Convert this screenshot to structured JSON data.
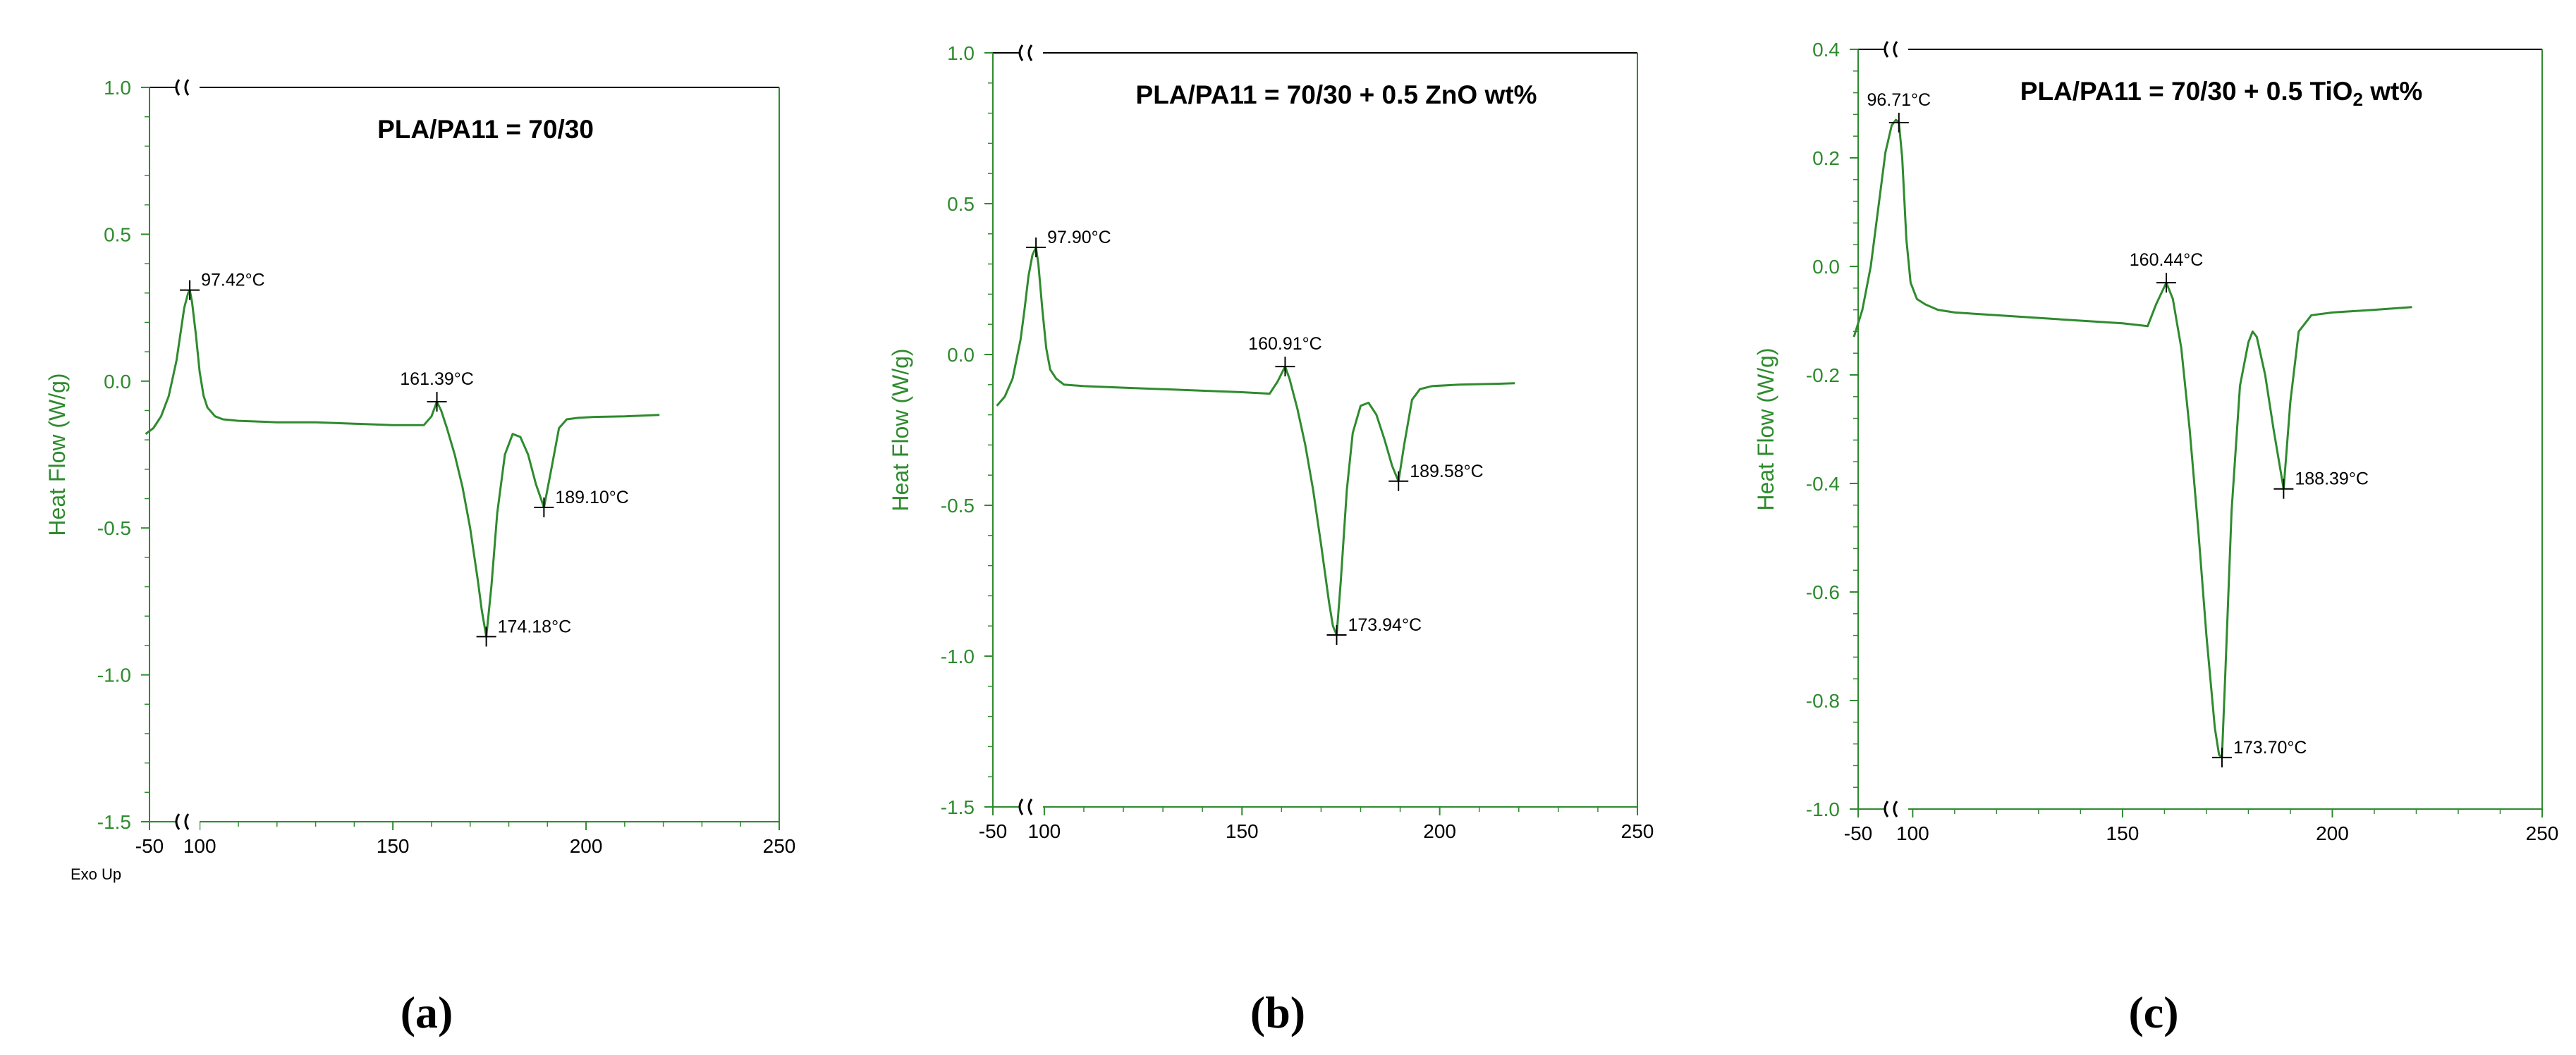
{
  "chart_data": [
    {
      "type": "line",
      "panel_label": "(a)",
      "title": "PLA/PA11 = 70/30",
      "xlabel": "",
      "ylabel": "Heat Flow (W/g)",
      "footnote": "Exo Up",
      "xlim": [
        -50,
        250
      ],
      "ylim": [
        -1.5,
        1.0
      ],
      "x_break": true,
      "x_ticks": [
        "-50",
        "100",
        "150",
        "200",
        "250"
      ],
      "y_ticks": [
        "1.0",
        "0.5",
        "0.0",
        "-0.5",
        "-1.0",
        "-1.5"
      ],
      "grid": false,
      "series": [
        {
          "color": "#2e8b2e",
          "x": [
            86,
            88,
            90,
            92,
            94,
            95,
            96,
            97,
            97.42,
            98,
            99,
            100,
            101,
            102,
            104,
            106,
            110,
            120,
            130,
            140,
            150,
            158,
            160,
            161.39,
            162.5,
            164,
            166,
            168,
            170,
            172,
            173,
            174.18,
            175.5,
            177,
            179,
            181,
            183,
            185,
            187,
            189.1,
            191,
            193,
            195,
            198,
            202,
            210,
            219
          ],
          "values": [
            -0.18,
            -0.16,
            -0.12,
            -0.05,
            0.07,
            0.16,
            0.25,
            0.3,
            0.31,
            0.27,
            0.16,
            0.03,
            -0.05,
            -0.09,
            -0.12,
            -0.13,
            -0.135,
            -0.14,
            -0.14,
            -0.145,
            -0.15,
            -0.15,
            -0.12,
            -0.07,
            -0.1,
            -0.16,
            -0.25,
            -0.36,
            -0.5,
            -0.68,
            -0.78,
            -0.87,
            -0.7,
            -0.45,
            -0.25,
            -0.18,
            -0.19,
            -0.25,
            -0.35,
            -0.43,
            -0.3,
            -0.16,
            -0.13,
            -0.125,
            -0.122,
            -0.12,
            -0.115
          ]
        }
      ],
      "annotations": [
        {
          "x": 97.42,
          "y": 0.31,
          "text": "97.42°C"
        },
        {
          "x": 161.39,
          "y": -0.07,
          "text": "161.39°C"
        },
        {
          "x": 174.18,
          "y": -0.87,
          "text": "174.18°C"
        },
        {
          "x": 189.1,
          "y": -0.43,
          "text": "189.10°C"
        }
      ]
    },
    {
      "type": "line",
      "panel_label": "(b)",
      "title": "PLA/PA11 = 70/30 + 0.5 ZnO wt%",
      "xlabel": "",
      "ylabel": "Heat Flow (W/g)",
      "xlim": [
        -50,
        250
      ],
      "ylim": [
        -1.5,
        1.0
      ],
      "x_break": true,
      "x_ticks": [
        "-50",
        "100",
        "150",
        "200",
        "250"
      ],
      "y_ticks": [
        "1.0",
        "0.5",
        "0.0",
        "-0.5",
        "-1.0",
        "-1.5"
      ],
      "grid": false,
      "series": [
        {
          "color": "#2e8b2e",
          "x": [
            88,
            90,
            92,
            94,
            95,
            96,
            97,
            97.9,
            98.5,
            99.5,
            100.5,
            101.5,
            103,
            105,
            110,
            120,
            130,
            140,
            150,
            157,
            159,
            160.91,
            162,
            164,
            166,
            168,
            170,
            172,
            173,
            173.94,
            175,
            176.5,
            178,
            180,
            182,
            184,
            186,
            188,
            189.58,
            191,
            193,
            195,
            198,
            205,
            215,
            219
          ],
          "values": [
            -0.17,
            -0.14,
            -0.08,
            0.05,
            0.15,
            0.26,
            0.33,
            0.355,
            0.3,
            0.15,
            0.02,
            -0.05,
            -0.08,
            -0.1,
            -0.105,
            -0.11,
            -0.115,
            -0.12,
            -0.125,
            -0.13,
            -0.09,
            -0.04,
            -0.08,
            -0.18,
            -0.3,
            -0.45,
            -0.63,
            -0.82,
            -0.9,
            -0.93,
            -0.75,
            -0.45,
            -0.26,
            -0.17,
            -0.16,
            -0.2,
            -0.28,
            -0.37,
            -0.42,
            -0.3,
            -0.15,
            -0.115,
            -0.105,
            -0.1,
            -0.097,
            -0.095
          ]
        }
      ],
      "annotations": [
        {
          "x": 97.9,
          "y": 0.355,
          "text": "97.90°C"
        },
        {
          "x": 160.91,
          "y": -0.04,
          "text": "160.91°C"
        },
        {
          "x": 173.94,
          "y": -0.93,
          "text": "173.94°C"
        },
        {
          "x": 189.58,
          "y": -0.42,
          "text": "189.58°C"
        }
      ]
    },
    {
      "type": "line",
      "panel_label": "(c)",
      "title": "PLA/PA11 = 70/30 + 0.5 TiO₂ wt%",
      "xlabel": "",
      "ylabel": "Heat Flow (W/g)",
      "xlim": [
        -50,
        250
      ],
      "ylim": [
        -1.0,
        0.4
      ],
      "x_break": true,
      "x_ticks": [
        "-50",
        "100",
        "150",
        "200",
        "250"
      ],
      "y_ticks": [
        "0.4",
        "0.2",
        "0.0",
        "-0.2",
        "-0.4",
        "-0.6",
        "-0.8",
        "-1.0"
      ],
      "grid": false,
      "series": [
        {
          "color": "#2e8b2e",
          "x": [
            86,
            88,
            90,
            92,
            93.5,
            95,
            96,
            96.71,
            97.5,
            98.5,
            99.5,
            101,
            103,
            106,
            110,
            120,
            130,
            140,
            150,
            156,
            158,
            160.44,
            162,
            164,
            166,
            168,
            170,
            172,
            173,
            173.7,
            174.5,
            176,
            178,
            180,
            181,
            182,
            184,
            186,
            188.39,
            190,
            192,
            195,
            200,
            210,
            219
          ],
          "values": [
            -0.13,
            -0.08,
            0.0,
            0.12,
            0.21,
            0.26,
            0.27,
            0.265,
            0.2,
            0.05,
            -0.03,
            -0.06,
            -0.07,
            -0.08,
            -0.085,
            -0.09,
            -0.095,
            -0.1,
            -0.105,
            -0.11,
            -0.07,
            -0.03,
            -0.06,
            -0.15,
            -0.3,
            -0.48,
            -0.68,
            -0.85,
            -0.9,
            -0.905,
            -0.75,
            -0.45,
            -0.22,
            -0.14,
            -0.12,
            -0.13,
            -0.2,
            -0.3,
            -0.41,
            -0.25,
            -0.12,
            -0.09,
            -0.085,
            -0.08,
            -0.075
          ]
        }
      ],
      "annotations": [
        {
          "x": 96.71,
          "y": 0.265,
          "text": "96.71°C"
        },
        {
          "x": 160.44,
          "y": -0.03,
          "text": "160.44°C"
        },
        {
          "x": 173.7,
          "y": -0.905,
          "text": "173.70°C"
        },
        {
          "x": 188.39,
          "y": -0.41,
          "text": "188.39°C"
        }
      ]
    }
  ]
}
